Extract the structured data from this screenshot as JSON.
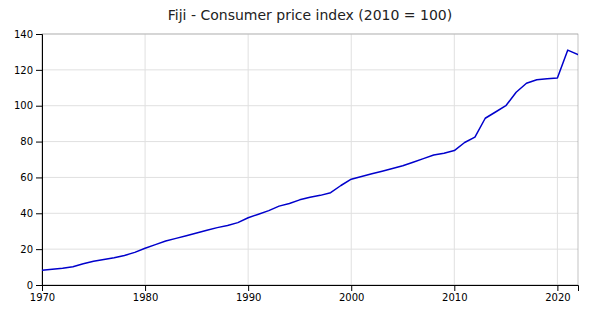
{
  "chart_data": {
    "type": "line",
    "title": "Fiji - Consumer price index (2010 = 100)",
    "x": [
      1970,
      1971,
      1972,
      1973,
      1974,
      1975,
      1976,
      1977,
      1978,
      1979,
      1980,
      1981,
      1982,
      1983,
      1984,
      1985,
      1986,
      1987,
      1988,
      1989,
      1990,
      1991,
      1992,
      1993,
      1994,
      1995,
      1996,
      1997,
      1998,
      1999,
      2000,
      2001,
      2002,
      2003,
      2004,
      2005,
      2006,
      2007,
      2008,
      2009,
      2010,
      2011,
      2012,
      2013,
      2014,
      2015,
      2016,
      2017,
      2018,
      2019,
      2020,
      2021,
      2022
    ],
    "values": [
      8.2,
      8.8,
      9.3,
      10.2,
      11.8,
      13.2,
      14.2,
      15.2,
      16.5,
      18.2,
      20.5,
      22.5,
      24.5,
      26.0,
      27.5,
      29.0,
      30.5,
      32.0,
      33.2,
      34.8,
      37.5,
      39.5,
      41.5,
      44.0,
      45.5,
      47.5,
      49.0,
      50.0,
      51.5,
      55.5,
      59.0,
      60.5,
      62.0,
      63.5,
      65.0,
      66.5,
      68.5,
      70.5,
      72.5,
      73.5,
      75.0,
      79.5,
      82.5,
      93.0,
      96.5,
      100.0,
      107.5,
      112.5,
      114.5,
      115.0,
      115.5,
      131.0,
      128.5
    ],
    "color": "#0000CC",
    "xlim": [
      1970,
      2022
    ],
    "ylim": [
      0,
      140
    ],
    "xticks": [
      1970,
      1980,
      1990,
      2000,
      2010,
      2020
    ],
    "yticks": [
      0,
      20,
      40,
      60,
      80,
      100,
      120,
      140
    ],
    "grid": true
  }
}
